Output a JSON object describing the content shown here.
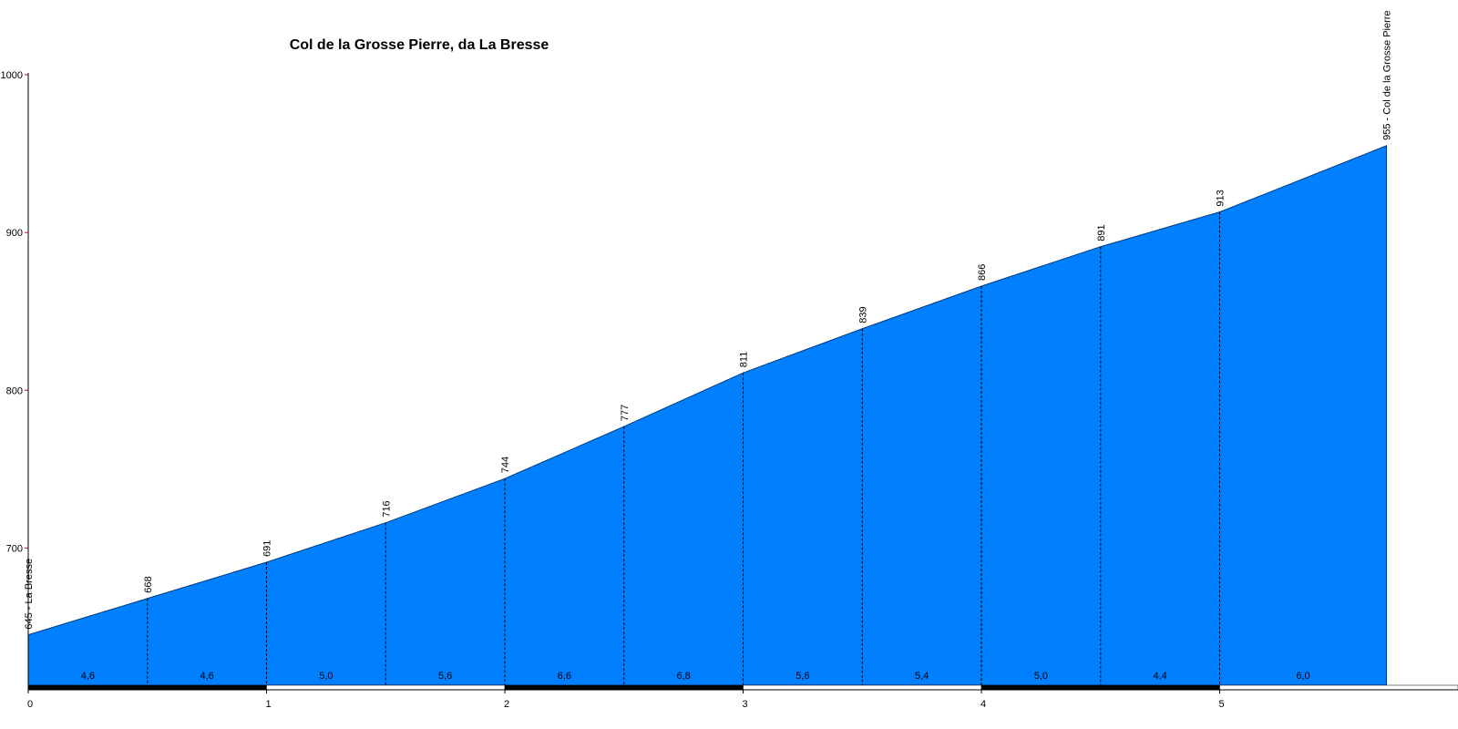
{
  "chart_data": {
    "type": "area",
    "title": "Col de la Grosse Pierre, da La Bresse",
    "x": [
      0,
      0.5,
      1,
      1.5,
      2,
      2.5,
      3,
      3.5,
      4,
      4.5,
      5,
      5.7
    ],
    "values": [
      645,
      668,
      691,
      716,
      744,
      777,
      811,
      839,
      866,
      891,
      913,
      955
    ],
    "value_labels": [
      "645 - La Bresse",
      "668",
      "691",
      "716",
      "744",
      "777",
      "811",
      "839",
      "866",
      "891",
      "913",
      "955 - Col de la Grosse Pierre"
    ],
    "color": "#0080ff",
    "segments": {
      "values": [
        4.6,
        4.6,
        5.0,
        5.6,
        6.6,
        6.8,
        5.6,
        5.4,
        5.0,
        4.4,
        6.0
      ],
      "value_labels": [
        "4,6",
        "4,6",
        "5,0",
        "5,6",
        "6,6",
        "6,8",
        "5,6",
        "5,4",
        "5,0",
        "4,4",
        "6,0"
      ]
    },
    "xlim": [
      0,
      6
    ],
    "xticks": [
      0,
      1,
      2,
      3,
      4,
      5
    ],
    "ylim": [
      613,
      1000
    ],
    "yticks": [
      700,
      800,
      900,
      1000
    ]
  }
}
